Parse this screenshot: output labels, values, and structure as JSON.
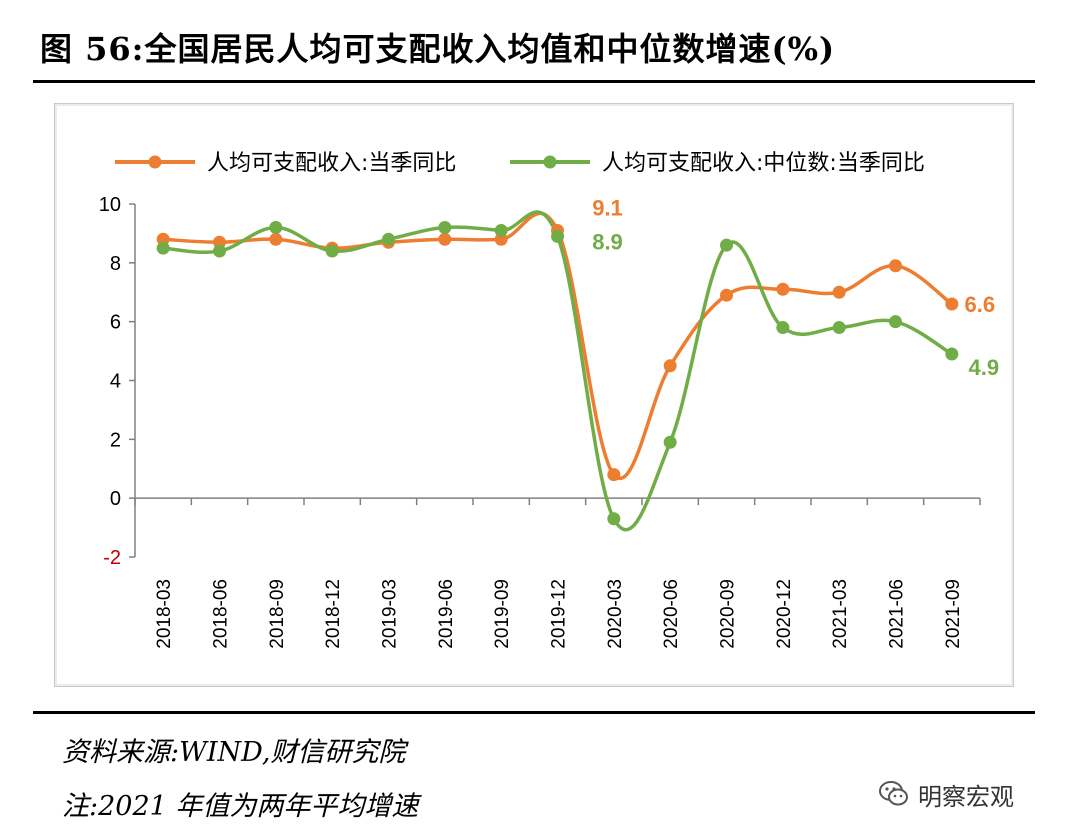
{
  "header": {
    "title": "图 56:全国居民人均可支配收入均值和中位数增速(%)"
  },
  "chart_data": {
    "type": "line",
    "title": "",
    "xlabel": "",
    "ylabel": "",
    "ylim": [
      -2,
      10
    ],
    "yticks": [
      "-2",
      "0",
      "2",
      "4",
      "6",
      "8",
      "10"
    ],
    "categories": [
      "2018-03",
      "2018-06",
      "2018-09",
      "2018-12",
      "2019-03",
      "2019-06",
      "2019-09",
      "2019-12",
      "2020-03",
      "2020-06",
      "2020-09",
      "2020-12",
      "2021-03",
      "2021-06",
      "2021-09"
    ],
    "legend_position": "top",
    "grid": false,
    "series": [
      {
        "name": "人均可支配收入:当季同比",
        "color": "#ED7D31",
        "values": [
          8.8,
          8.7,
          8.8,
          8.5,
          8.7,
          8.8,
          8.8,
          9.1,
          0.8,
          4.5,
          6.9,
          7.1,
          7.0,
          7.9,
          6.6
        ]
      },
      {
        "name": "人均可支配收入:中位数:当季同比",
        "color": "#70AD47",
        "values": [
          8.5,
          8.4,
          9.2,
          8.4,
          8.8,
          9.2,
          9.1,
          8.9,
          -0.7,
          1.9,
          8.6,
          5.8,
          5.8,
          6.0,
          4.9
        ]
      }
    ],
    "annotations": [
      {
        "text": "9.1",
        "series": 0,
        "index": 7
      },
      {
        "text": "8.9",
        "series": 1,
        "index": 7
      },
      {
        "text": "6.6",
        "series": 0,
        "index": 14
      },
      {
        "text": "4.9",
        "series": 1,
        "index": 14
      }
    ],
    "negative_tick_color": "#C00000"
  },
  "footer": {
    "source": "资料来源:WIND,财信研究院",
    "note": "注:2021 年值为两年平均增速",
    "watermark": "明察宏观"
  }
}
